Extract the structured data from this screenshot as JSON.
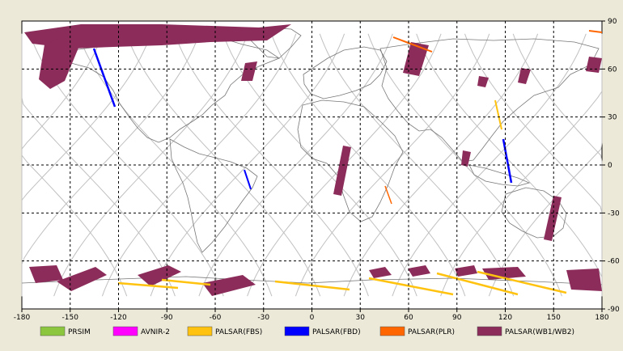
{
  "map": {
    "lon_ticks": [
      "-180",
      "-150",
      "-120",
      "-90",
      "-60",
      "-30",
      "0",
      "30",
      "60",
      "90",
      "120",
      "150",
      "180"
    ],
    "lat_ticks": [
      "90",
      "60",
      "30",
      "0",
      "-30",
      "-60",
      "-90"
    ],
    "lon_values": [
      -180,
      -150,
      -120,
      -90,
      -60,
      -30,
      0,
      30,
      60,
      90,
      120,
      150,
      180
    ],
    "lat_values": [
      90,
      60,
      30,
      0,
      -30,
      -60,
      -90
    ]
  },
  "legend": {
    "items": [
      {
        "label": "PRSIM",
        "color": "#8cc63f"
      },
      {
        "label": "AVNIR-2",
        "color": "#ff00ff"
      },
      {
        "label": "PALSAR(FBS)",
        "color": "#ffc20e"
      },
      {
        "label": "PALSAR(FBD)",
        "color": "#0000ff"
      },
      {
        "label": "PALSAR(PLR)",
        "color": "#ff6600"
      },
      {
        "label": "PALSAR(WB1/WB2)",
        "color": "#8b2c5a"
      }
    ]
  }
}
